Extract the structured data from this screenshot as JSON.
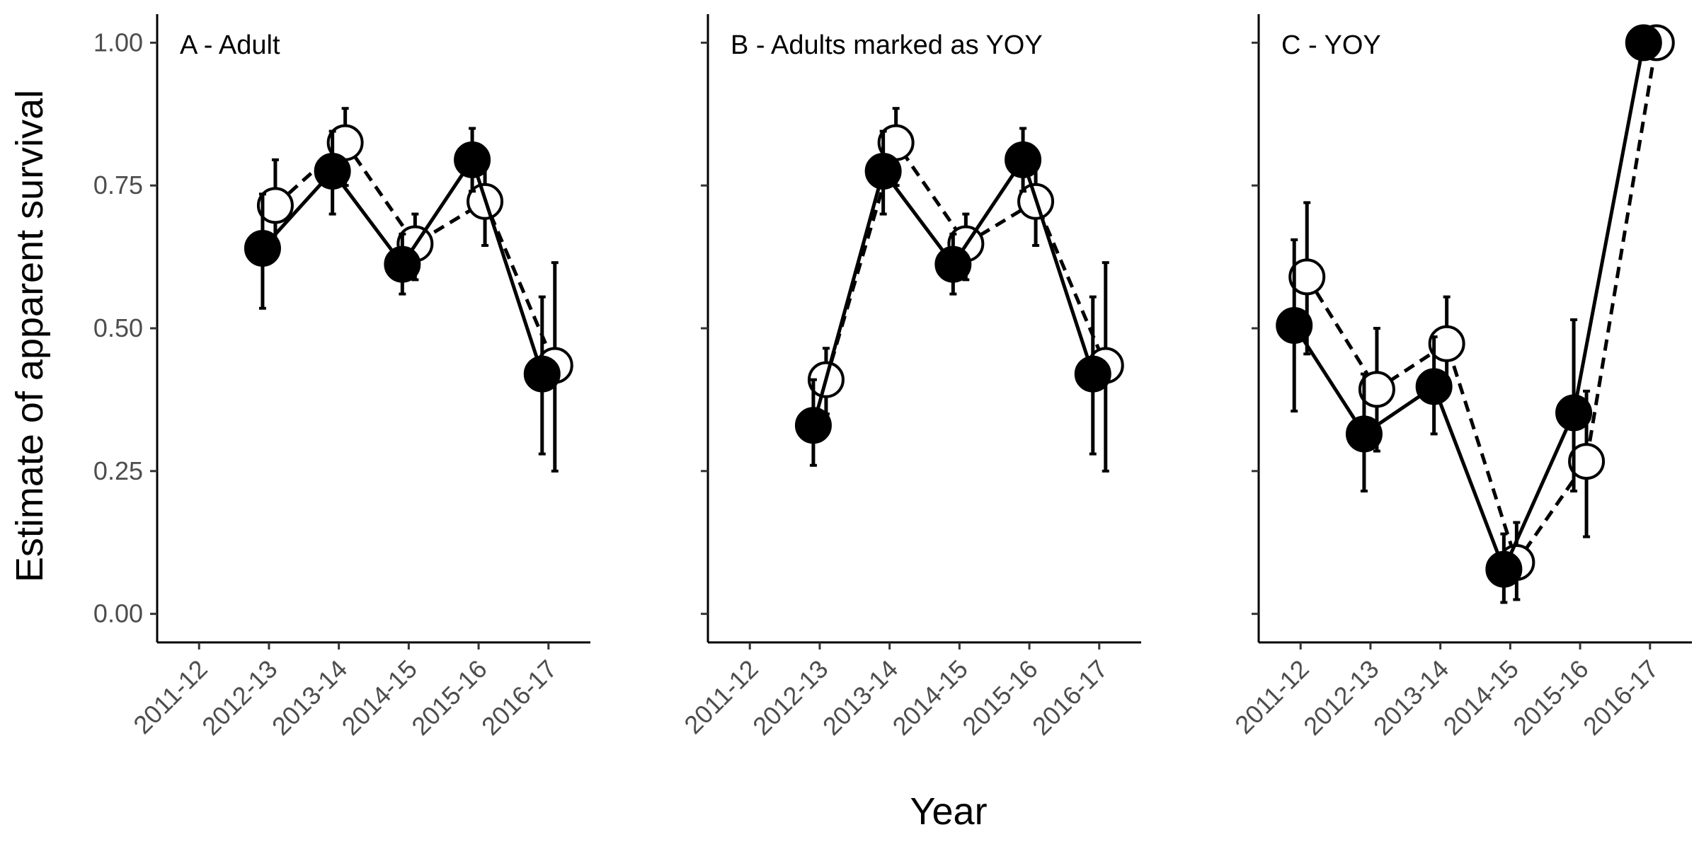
{
  "chart_data": {
    "type": "line",
    "title": "",
    "xlabel": "Year",
    "ylabel": "Estimate of apparent survival",
    "categories": [
      "2011-12",
      "2012-13",
      "2013-14",
      "2014-15",
      "2015-16",
      "2016-17"
    ],
    "yticks": [
      "0.00",
      "0.25",
      "0.50",
      "0.75",
      "1.00"
    ],
    "ylim": [
      -0.05,
      1.05
    ],
    "grid": false,
    "legend": "none",
    "style": {
      "filled_series": {
        "line": "solid",
        "marker": "filled circle",
        "color": "#000000"
      },
      "open_series": {
        "line": "dashed",
        "marker": "open circle",
        "color": "#000000"
      }
    },
    "panels": [
      {
        "label": "A - Adult",
        "series": [
          {
            "style": "filled_series",
            "values": [
              null,
              0.64,
              0.775,
              0.612,
              0.795,
              0.42
            ],
            "lower": [
              null,
              0.535,
              0.7,
              0.56,
              0.74,
              0.28
            ],
            "upper": [
              null,
              0.735,
              0.845,
              0.665,
              0.85,
              0.555
            ]
          },
          {
            "style": "open_series",
            "values": [
              null,
              0.715,
              0.825,
              0.648,
              0.722,
              0.435
            ],
            "lower": [
              null,
              0.63,
              0.75,
              0.585,
              0.645,
              0.25
            ],
            "upper": [
              null,
              0.795,
              0.885,
              0.7,
              0.79,
              0.615
            ]
          }
        ]
      },
      {
        "label": "B - Adults marked as YOY",
        "series": [
          {
            "style": "filled_series",
            "values": [
              null,
              0.33,
              0.775,
              0.612,
              0.795,
              0.42
            ],
            "lower": [
              null,
              0.26,
              0.7,
              0.56,
              0.74,
              0.28
            ],
            "upper": [
              null,
              0.41,
              0.845,
              0.665,
              0.85,
              0.555
            ]
          },
          {
            "style": "open_series",
            "values": [
              null,
              0.41,
              0.825,
              0.648,
              0.722,
              0.435
            ],
            "lower": [
              null,
              0.35,
              0.75,
              0.585,
              0.645,
              0.25
            ],
            "upper": [
              null,
              0.465,
              0.885,
              0.7,
              0.79,
              0.615
            ]
          }
        ]
      },
      {
        "label": "C - YOY",
        "series": [
          {
            "style": "filled_series",
            "values": [
              0.505,
              0.315,
              0.398,
              0.078,
              0.352,
              1.0
            ],
            "lower": [
              0.355,
              0.215,
              0.315,
              0.02,
              0.215,
              1.0
            ],
            "upper": [
              0.655,
              0.42,
              0.485,
              0.14,
              0.515,
              1.0
            ]
          },
          {
            "style": "open_series",
            "values": [
              0.59,
              0.393,
              0.473,
              0.09,
              0.267,
              1.0
            ],
            "lower": [
              0.455,
              0.285,
              0.39,
              0.025,
              0.135,
              1.0
            ],
            "upper": [
              0.72,
              0.5,
              0.555,
              0.16,
              0.39,
              1.0
            ]
          }
        ]
      }
    ]
  }
}
